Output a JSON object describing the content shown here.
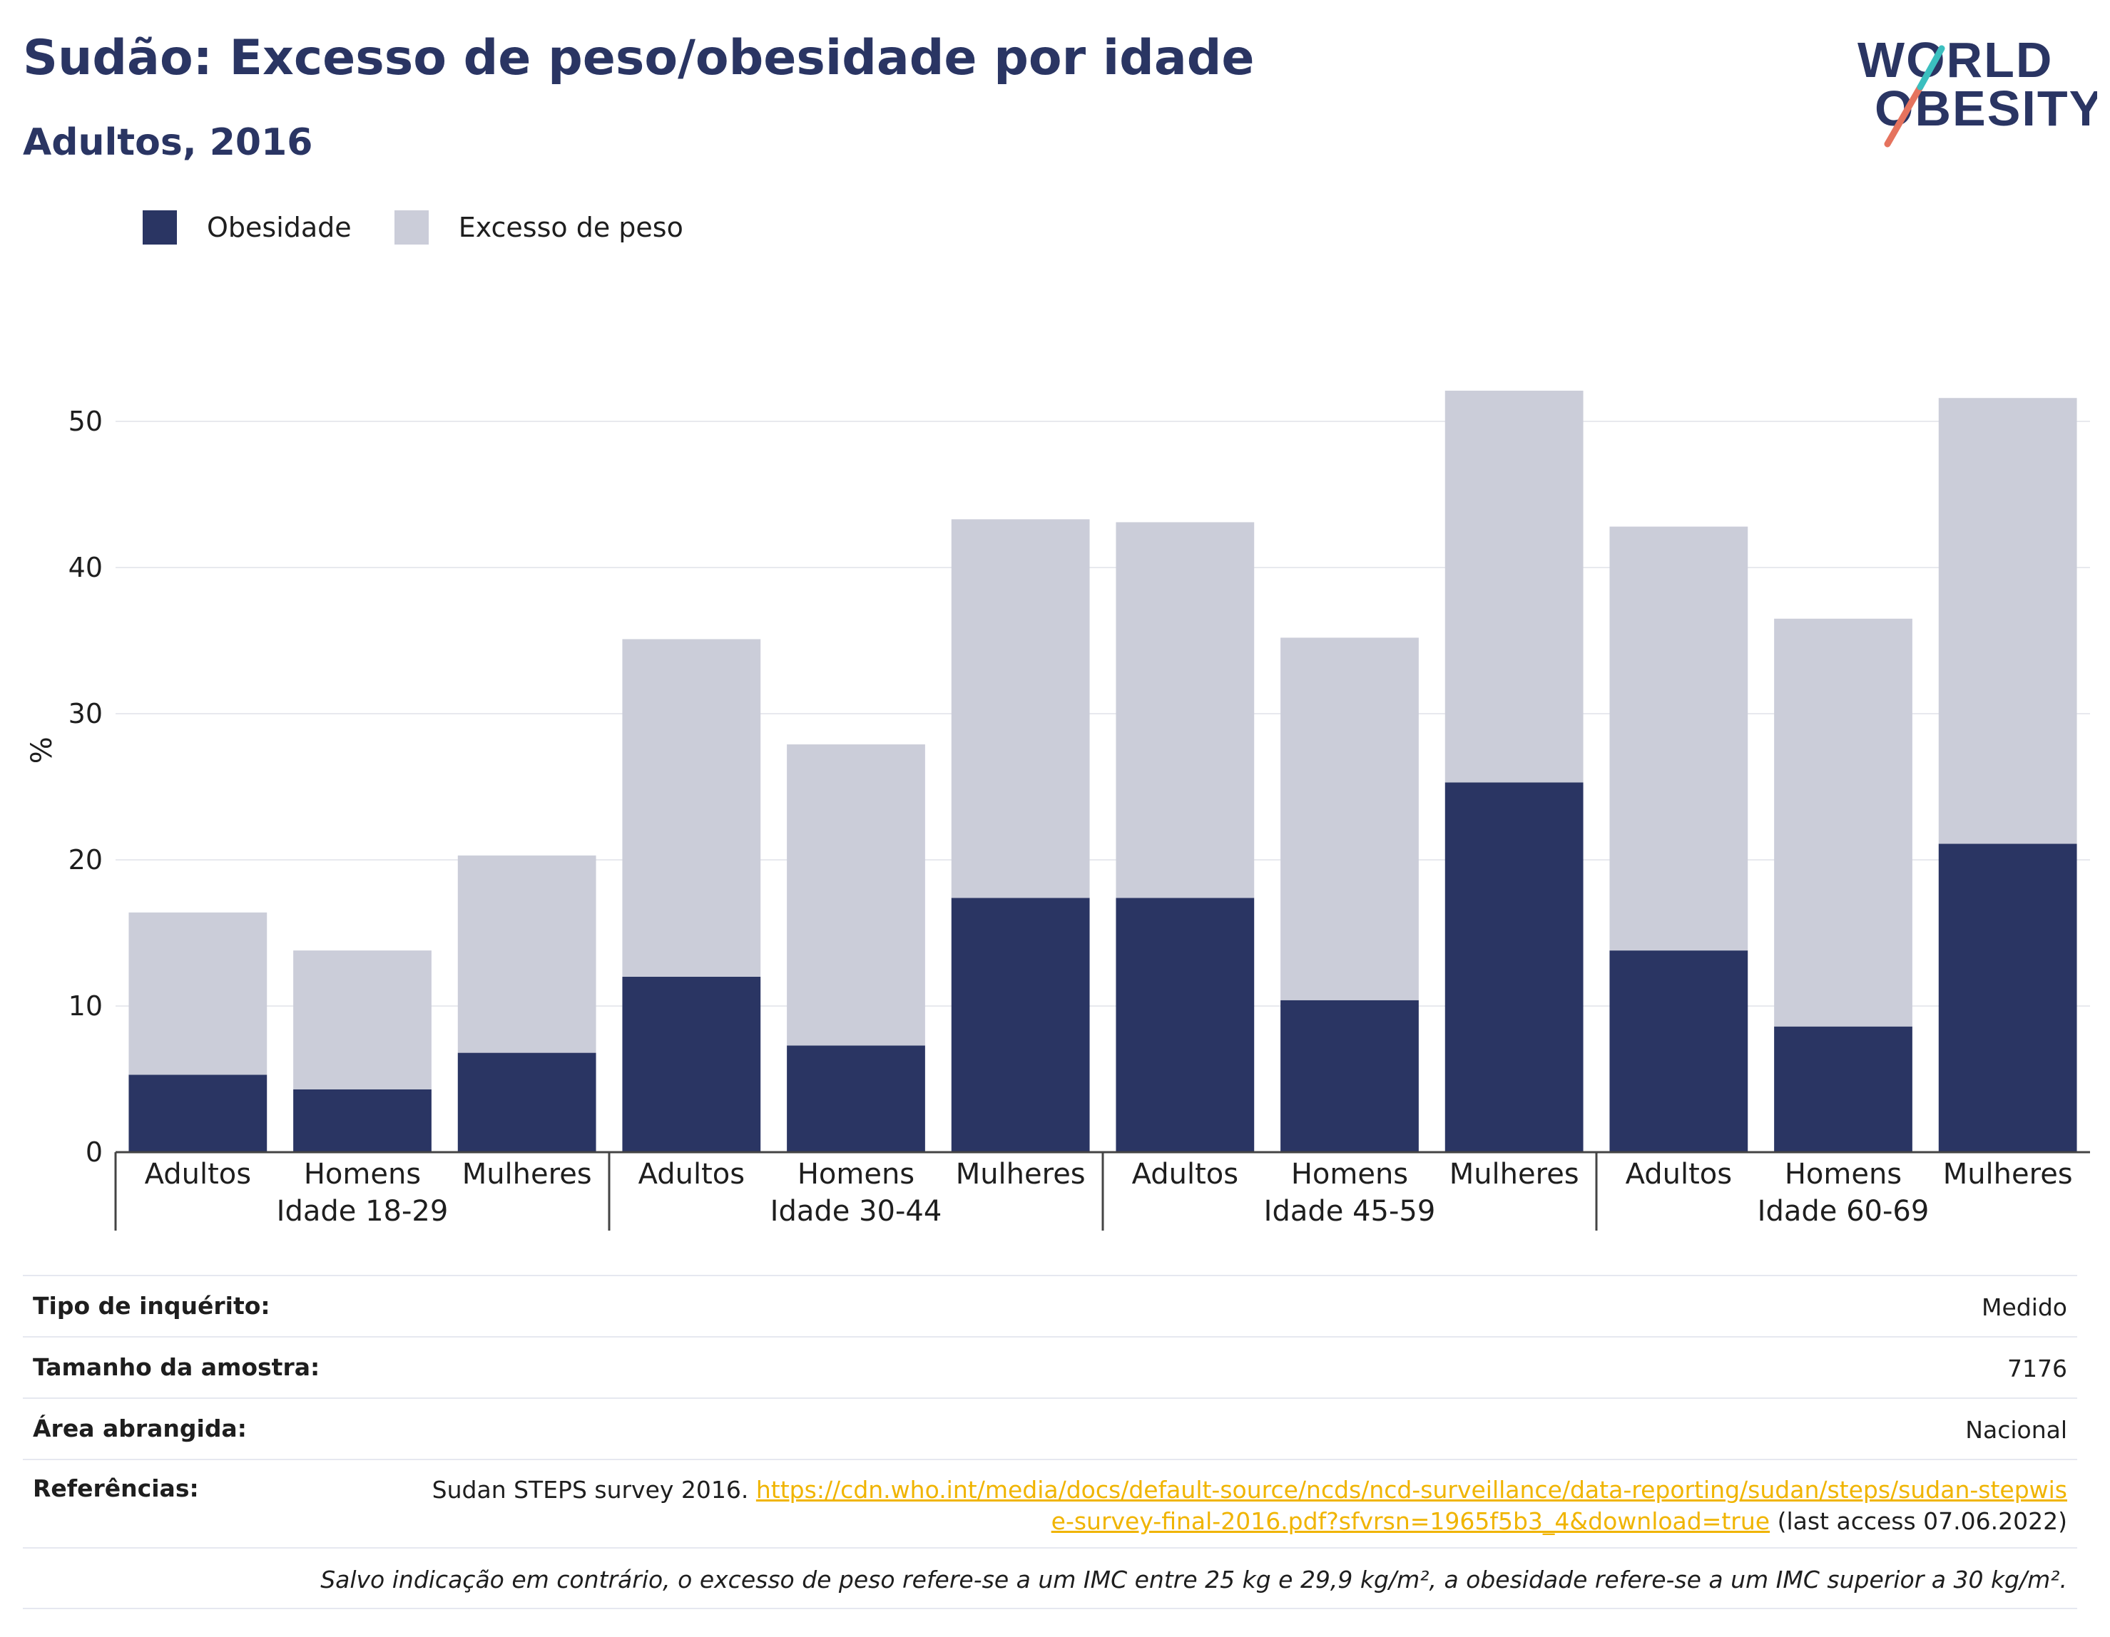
{
  "header": {
    "title": "Sudão: Excesso de peso/obesidade por idade",
    "subtitle": "Adultos, 2016"
  },
  "logo": {
    "line1": "WORLD",
    "line2": "OBESITY"
  },
  "legend": {
    "items": [
      {
        "label": "Obesidade",
        "color": "#2a3563"
      },
      {
        "label": "Excesso de peso",
        "color": "#cbcdd9"
      }
    ]
  },
  "chart_data": {
    "type": "bar",
    "stacked": true,
    "ylabel": "%",
    "ylim": [
      0,
      55
    ],
    "yticks": [
      0,
      10,
      20,
      30,
      40,
      50
    ],
    "grid": true,
    "legend_position": "top-left",
    "groups": [
      "Idade 18-29",
      "Idade 30-44",
      "Idade 45-59",
      "Idade 60-69"
    ],
    "categories": [
      "Adultos",
      "Homens",
      "Mulheres",
      "Adultos",
      "Homens",
      "Mulheres",
      "Adultos",
      "Homens",
      "Mulheres",
      "Adultos",
      "Homens",
      "Mulheres"
    ],
    "category_group": [
      0,
      0,
      0,
      1,
      1,
      1,
      2,
      2,
      2,
      3,
      3,
      3
    ],
    "series": [
      {
        "name": "Obesidade",
        "color": "#2a3563",
        "values": [
          5.3,
          4.3,
          6.8,
          12.0,
          7.3,
          17.4,
          17.4,
          10.4,
          25.3,
          13.8,
          8.6,
          21.1
        ]
      },
      {
        "name": "Excesso de peso",
        "color": "#cbcdd9",
        "values": [
          11.1,
          9.5,
          13.5,
          23.1,
          20.6,
          25.9,
          25.7,
          24.8,
          26.8,
          29.0,
          27.9,
          30.5
        ]
      }
    ]
  },
  "info": {
    "survey_type_label": "Tipo de inquérito:",
    "survey_type_value": "Medido",
    "sample_size_label": "Tamanho da amostra:",
    "sample_size_value": "7176",
    "area_label": "Área abrangida:",
    "area_value": "Nacional",
    "references_label": "Referências:",
    "references_text": "Sudan STEPS survey 2016.",
    "references_link": "https://cdn.who.int/media/docs/default-source/ncds/ncd-surveillance/data-reporting/sudan/steps/sudan-stepwise-survey-final-2016.pdf?sfvrsn=1965f5b3_4&download=true",
    "references_access": "(last access 07.06.2022)",
    "footnote": "Salvo indicação em contrário, o excesso de peso refere-se a um IMC entre 25 kg e 29,9 kg/m², a obesidade refere-se a um IMC superior a 30 kg/m²."
  }
}
